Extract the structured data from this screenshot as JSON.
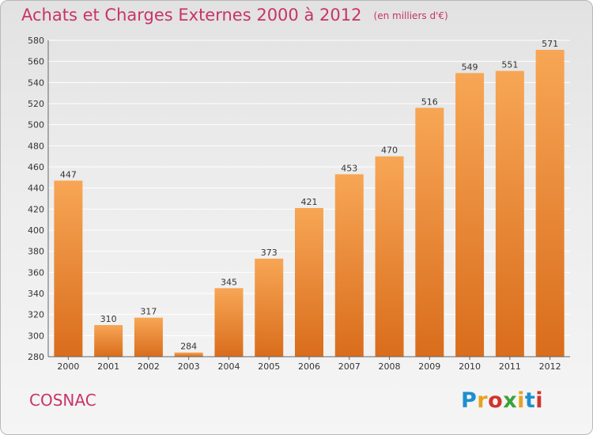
{
  "header": {
    "title": "Achats et Charges Externes 2000 à 2012",
    "subtitle": "(en milliers d'€)"
  },
  "footer": {
    "city": "COSNAC",
    "logo_text": "Proxiti",
    "logo_colors": [
      "#1e8fd0",
      "#e8a21f",
      "#d0342c",
      "#3aa33a",
      "#e8a21f",
      "#1e8fd0",
      "#d0342c"
    ]
  },
  "colors": {
    "title": "#c8336a",
    "bar_top": "#f7a655",
    "bar_bottom": "#d96d1c",
    "gridline": "#ffffff"
  },
  "chart_data": {
    "type": "bar",
    "title": "Achats et Charges Externes 2000 à 2012",
    "subtitle": "(en milliers d'€)",
    "categories": [
      "2000",
      "2001",
      "2002",
      "2003",
      "2004",
      "2005",
      "2006",
      "2007",
      "2008",
      "2009",
      "2010",
      "2011",
      "2012"
    ],
    "values": [
      447,
      310,
      317,
      284,
      345,
      373,
      421,
      453,
      470,
      516,
      549,
      551,
      571
    ],
    "ylim": [
      280,
      580
    ],
    "ytick_step": 20,
    "grid": true,
    "data_labels": true
  }
}
